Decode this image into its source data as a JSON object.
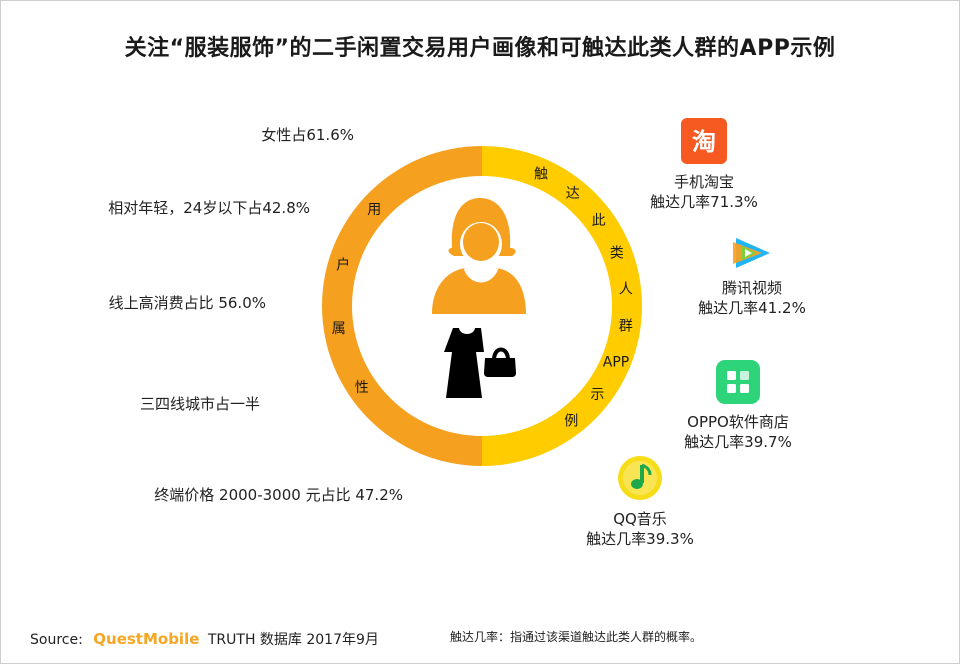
{
  "title": "关注“服装服饰”的二手闲置交易用户画像和可触达此类人群的APP示例",
  "ring": {
    "left_label_chars": [
      "用",
      "户",
      "属",
      "性"
    ],
    "right_label_chars": [
      "触",
      "达",
      "此",
      "类",
      "人",
      "群",
      "APP",
      "示",
      "例"
    ],
    "left_color": "#f5a01f",
    "right_color": "#ffcc00",
    "center_color": "#f5a01f"
  },
  "chart_data": {
    "type": "table",
    "user_attributes": [
      "女性占61.6%",
      "相对年轻，24岁以下占42.8%",
      "线上高消费占比 56.0%",
      "三四线城市占一半",
      "终端价格 2000-3000 元占比 47.2%"
    ],
    "apps": [
      {
        "name": "手机淘宝",
        "reach_label": "触达几率71.3%",
        "reach": 71.3,
        "icon": "taobao-icon"
      },
      {
        "name": "腾讯视频",
        "reach_label": "触达几率41.2%",
        "reach": 41.2,
        "icon": "tencent-video-icon"
      },
      {
        "name": "OPPO软件商店",
        "reach_label": "触达几率39.7%",
        "reach": 39.7,
        "icon": "oppo-store-icon"
      },
      {
        "name": "QQ音乐",
        "reach_label": "触达几率39.3%",
        "reach": 39.3,
        "icon": "qq-music-icon"
      }
    ]
  },
  "icons": {
    "taobao_glyph": "淘"
  },
  "footer": {
    "source_label": "Source:",
    "brand": "QuestMobile",
    "source_text": "TRUTH 数据库 2017年9月",
    "note": "触达几率：指通过该渠道触达此类人群的概率。"
  }
}
